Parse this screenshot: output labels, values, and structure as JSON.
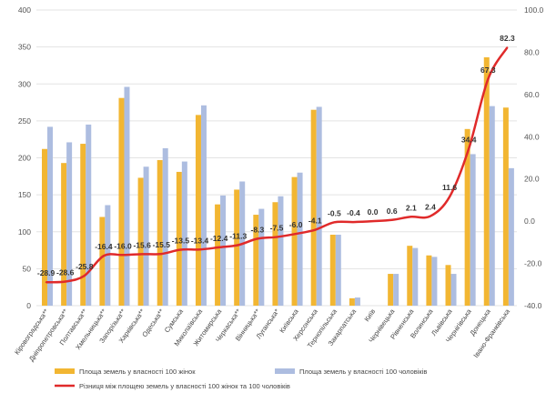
{
  "chart_data": {
    "type": "bar+line",
    "categories": [
      "Кіровоградська**",
      "Дніпропетровська**",
      "Полтавська**",
      "Хмельницька**",
      "Запорізька**",
      "Харківська**",
      "Одеська**",
      "Сумська",
      "Миколаївська",
      "Житомирська",
      "Черкаська**",
      "Вінницька**",
      "Луганська*",
      "Київська",
      "Херсонська",
      "Тернопільська",
      "Закарпатська",
      "Київ",
      "Чернівецька",
      "Рівненська",
      "Волинська",
      "Львівська",
      "Чернігівська",
      "Донецька",
      "Івано-Франківська"
    ],
    "series": [
      {
        "name": "Площа земель у власності 100 жінок",
        "type": "bar",
        "axis": "left",
        "color": "#f2b632",
        "values": [
          212,
          193,
          219,
          120,
          281,
          173,
          197,
          181,
          258,
          137,
          157,
          123,
          140,
          174,
          265,
          96,
          10,
          0,
          43,
          81,
          68,
          55,
          239,
          336,
          268
        ]
      },
      {
        "name": "Площа земель у власності 100 чоловіків",
        "type": "bar",
        "axis": "left",
        "color": "#adbde0",
        "values": [
          242,
          221,
          245,
          136,
          296,
          188,
          213,
          195,
          271,
          149,
          168,
          131,
          148,
          180,
          269,
          96,
          11,
          0,
          43,
          78,
          66,
          43,
          205,
          270,
          186
        ]
      },
      {
        "name": "Різниця між площею земель у власності 100 жінок та 100 чоловіків",
        "type": "line",
        "axis": "right",
        "color": "#e02a2a",
        "values": [
          -28.9,
          -28.6,
          -25.8,
          -16.4,
          -16.0,
          -15.6,
          -15.5,
          -13.5,
          -13.4,
          -12.4,
          -11.3,
          -8.3,
          -7.5,
          -6.0,
          -4.1,
          -0.5,
          -0.4,
          0.0,
          0.6,
          2.1,
          2.4,
          11.6,
          34.4,
          67.3,
          82.3
        ],
        "labels": [
          "-28.9",
          "-28.6",
          "-25.8",
          "-16.4",
          "-16.0",
          "-15.6",
          "-15.5",
          "-13.5",
          "-13.4",
          "-12.4",
          "-11.3",
          "-8.3",
          "-7.5",
          "-6.0",
          "-4.1",
          "-0.5",
          "-0.4",
          "0.0",
          "0.6",
          "2.1",
          "2.4",
          "11.6",
          "34.4",
          "67.3",
          "82.3"
        ]
      }
    ],
    "yleft": {
      "min": 0,
      "max": 400,
      "step": 50,
      "ticks": [
        "0",
        "50",
        "100",
        "150",
        "200",
        "250",
        "300",
        "350",
        "400"
      ]
    },
    "yright": {
      "min": -40,
      "max": 100,
      "step": 20,
      "ticks": [
        "-40.0",
        "-20.0",
        "0.0",
        "20.0",
        "40.0",
        "60.0",
        "80.0",
        "100.0"
      ]
    },
    "grid": true,
    "legend_position": "bottom"
  }
}
